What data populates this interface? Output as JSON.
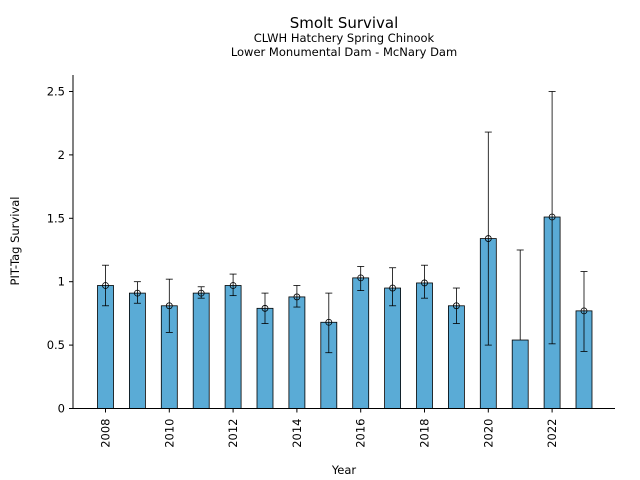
{
  "chart_data": {
    "type": "bar",
    "title": "Smolt Survival",
    "subtitles": [
      "CLWH Hatchery Spring Chinook",
      "Lower Monumental Dam - McNary Dam"
    ],
    "xlabel": "Year",
    "ylabel": "PIT-Tag Survival",
    "ylim": [
      0,
      2.63
    ],
    "yticks": [
      0,
      0.5,
      1,
      1.5,
      2,
      2.5
    ],
    "ytick_labels": [
      "0",
      "0.5",
      "1",
      "1.5",
      "2",
      "2.5"
    ],
    "xtick_labels": [
      "2008",
      "2010",
      "2012",
      "2014",
      "2016",
      "2018",
      "2020",
      "2022"
    ],
    "categories": [
      2008,
      2009,
      2010,
      2011,
      2012,
      2013,
      2014,
      2015,
      2016,
      2017,
      2018,
      2019,
      2020,
      2021,
      2022,
      2023
    ],
    "values": [
      0.97,
      0.91,
      0.81,
      0.91,
      0.97,
      0.79,
      0.88,
      0.68,
      1.03,
      0.95,
      0.99,
      0.81,
      1.34,
      0.54,
      1.51,
      0.77
    ],
    "point_values": [
      0.97,
      0.91,
      0.81,
      0.91,
      0.97,
      0.79,
      0.88,
      0.68,
      1.03,
      0.95,
      0.99,
      0.81,
      1.34,
      null,
      1.51,
      0.77
    ],
    "err_low": [
      0.81,
      0.83,
      0.6,
      0.87,
      0.89,
      0.67,
      0.8,
      0.44,
      0.93,
      0.81,
      0.87,
      0.67,
      0.5,
      null,
      0.51,
      0.45
    ],
    "err_high": [
      1.13,
      1.0,
      1.02,
      0.96,
      1.06,
      0.91,
      0.97,
      0.91,
      1.12,
      1.11,
      1.13,
      0.95,
      2.18,
      1.25,
      2.5,
      1.08
    ],
    "bar_color": "#5aabd6",
    "edge_color": "#000000",
    "grid": false,
    "legend": "none"
  }
}
